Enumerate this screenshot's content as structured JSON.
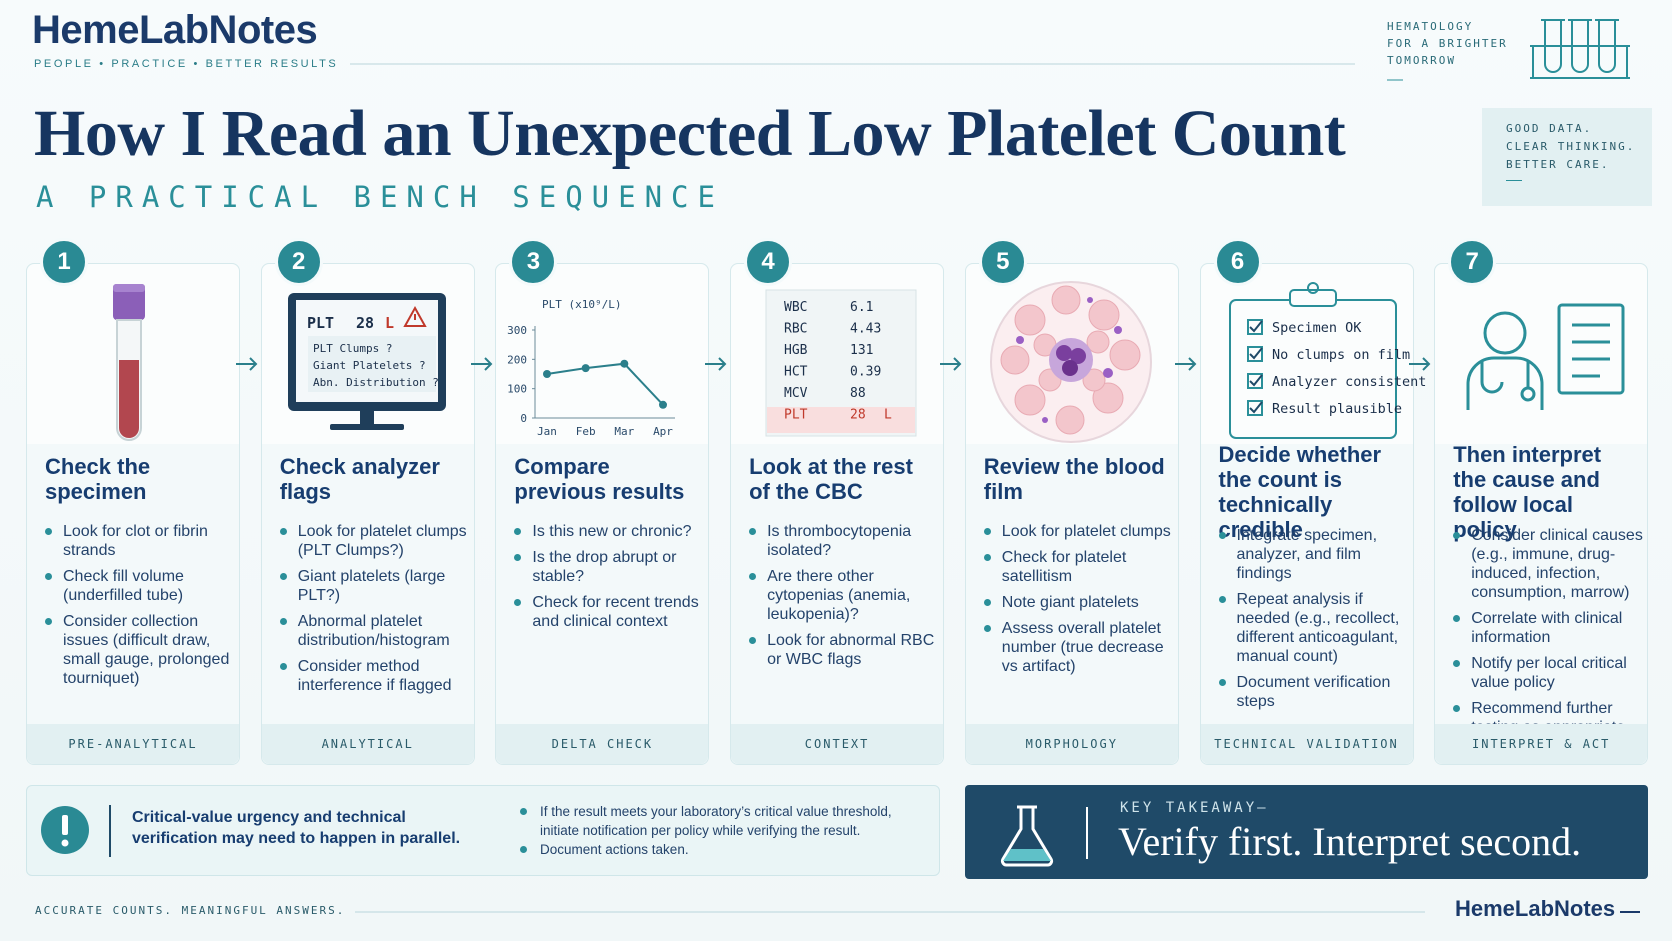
{
  "header": {
    "brand": "HemeLabNotes",
    "tagline": "PEOPLE • PRACTICE • BETTER RESULTS",
    "motto": [
      "HEMATOLOGY",
      "FOR A BRIGHTER",
      "TOMORROW"
    ]
  },
  "title": "How I Read an Unexpected Low Platelet Count",
  "subtitle": "A PRACTICAL BENCH SEQUENCE",
  "callout": [
    "GOOD DATA.",
    "CLEAR THINKING.",
    "BETTER CARE."
  ],
  "steps": [
    {
      "number": "1",
      "heading": "Check the specimen",
      "bullets": [
        "Look for clot or fibrin strands",
        "Check fill volume (underfilled tube)",
        "Consider collection issues (difficult draw, small gauge, prolonged tourniquet)"
      ],
      "tag": "PRE-ANALYTICAL"
    },
    {
      "number": "2",
      "heading": "Check analyzer flags",
      "bullets": [
        "Look for platelet clumps (PLT Clumps?)",
        "Giant platelets (large PLT?)",
        "Abnormal platelet distribution/histogram",
        "Consider method interference if flagged"
      ],
      "tag": "ANALYTICAL"
    },
    {
      "number": "3",
      "heading": "Compare previous results",
      "bullets": [
        "Is this new or chronic?",
        "Is the drop abrupt or stable?",
        "Check for recent trends and clinical context"
      ],
      "tag": "DELTA CHECK"
    },
    {
      "number": "4",
      "heading": "Look at the rest of the CBC",
      "bullets": [
        "Is thrombocytopenia isolated?",
        "Are there other cytopenias (anemia, leukopenia)?",
        "Look for abnormal RBC or WBC flags"
      ],
      "tag": "CONTEXT"
    },
    {
      "number": "5",
      "heading": "Review the blood film",
      "bullets": [
        "Look for platelet clumps",
        "Check for platelet satellitism",
        "Note giant platelets",
        "Assess overall platelet number (true decrease vs artifact)"
      ],
      "tag": "MORPHOLOGY"
    },
    {
      "number": "6",
      "heading": "Decide whether the count is technically credible",
      "bullets": [
        "Integrate specimen, analyzer, and film findings",
        "Repeat analysis if needed (e.g., recollect, different anticoagulant, manual count)",
        "Document verification steps"
      ],
      "tag": "TECHNICAL VALIDATION"
    },
    {
      "number": "7",
      "heading": "Then interpret the cause and follow local policy",
      "bullets": [
        "Consider clinical causes (e.g., immune, drug-induced, infection, consumption, marrow)",
        "Correlate with clinical information",
        "Notify per local critical value policy",
        "Recommend further testing as appropriate"
      ],
      "tag": "INTERPRET & ACT"
    }
  ],
  "analyzer_screen": {
    "result_label": "PLT",
    "result_value": "28",
    "flag": "L",
    "messages": [
      "PLT Clumps ?",
      "Giant Platelets ?",
      "Abn. Distribution ?"
    ]
  },
  "trend_chart": {
    "type": "line",
    "y_label": "PLT (x10⁹/L)",
    "categories": [
      "Jan",
      "Feb",
      "Mar",
      "Apr"
    ],
    "values": [
      150,
      170,
      185,
      45
    ],
    "ylim": [
      0,
      300
    ],
    "yticks": [
      0,
      100,
      200,
      300
    ],
    "color": "#2b7f8b"
  },
  "cbc_table": {
    "rows": [
      [
        "WBC",
        "6.1"
      ],
      [
        "RBC",
        "4.43"
      ],
      [
        "HGB",
        "131"
      ],
      [
        "HCT",
        "0.39"
      ],
      [
        "MCV",
        "88"
      ],
      [
        "PLT",
        "28",
        "L"
      ]
    ]
  },
  "checklist": [
    "Specimen OK",
    "No clumps on film",
    "Analyzer consistent",
    "Result plausible"
  ],
  "alert": {
    "text": "Critical-value urgency and technical verification may need to happen in parallel.",
    "bullets": [
      "If the result meets your laboratory’s critical value threshold, initiate notification per policy while verifying the result.",
      "Document actions taken."
    ]
  },
  "takeaway": {
    "label": "KEY TAKEAWAY—",
    "text": "Verify first. Interpret second."
  },
  "footer": {
    "tagline": "ACCURATE COUNTS. MEANINGFUL ANSWERS.",
    "brand": "HemeLabNotes"
  }
}
